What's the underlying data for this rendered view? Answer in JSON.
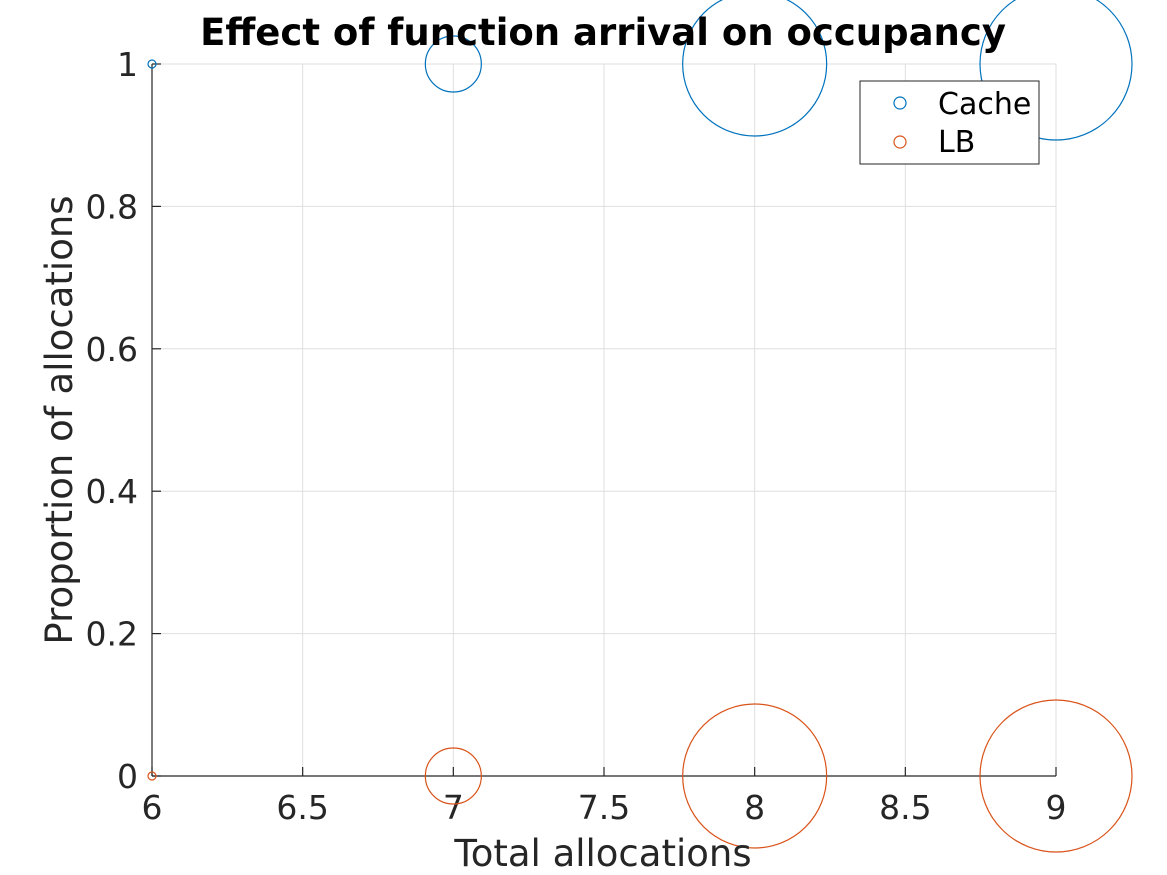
{
  "chart_data": {
    "type": "scatter",
    "title": "Effect of function arrival on occupancy",
    "xlabel": "Total allocations",
    "ylabel": "Proportion of allocations",
    "xlim": [
      6,
      9
    ],
    "ylim": [
      0,
      1
    ],
    "xticks": [
      6,
      6.5,
      7,
      7.5,
      8,
      8.5,
      9
    ],
    "xtick_labels": [
      "6",
      "6.5",
      "7",
      "7.5",
      "8",
      "8.5",
      "9"
    ],
    "yticks": [
      0,
      0.2,
      0.4,
      0.6,
      0.8,
      1
    ],
    "ytick_labels": [
      "0",
      "0.2",
      "0.4",
      "0.6",
      "0.8",
      "1"
    ],
    "grid": true,
    "legend_position": "top-right",
    "marker": "open-circle",
    "marker_sizes_relative": [
      1,
      7,
      18,
      19
    ],
    "series": [
      {
        "name": "Cache",
        "color": "#0072bd",
        "x": [
          6,
          7,
          8,
          9
        ],
        "y": [
          1,
          1,
          1,
          1
        ]
      },
      {
        "name": "LB",
        "color": "#d95319",
        "x": [
          6,
          7,
          8,
          9
        ],
        "y": [
          0,
          0,
          0,
          0
        ]
      }
    ]
  }
}
